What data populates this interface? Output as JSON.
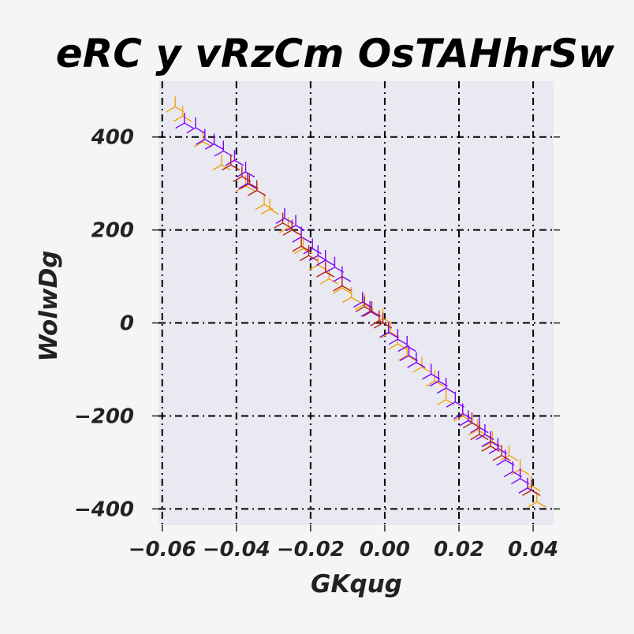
{
  "chart_data": {
    "type": "scatter",
    "title": "eRC y  vRzCm OsTAHhrSw",
    "xlabel": "GKqug",
    "ylabel": "WolwDg",
    "xlim": [
      -0.061,
      0.0455
    ],
    "ylim": [
      -435,
      520
    ],
    "xticks": [
      -0.06,
      -0.04,
      -0.02,
      0.0,
      0.02,
      0.04
    ],
    "xtick_labels": [
      "−0.06",
      "−0.04",
      "−0.02",
      "0.00",
      "0.02",
      "0.04"
    ],
    "yticks": [
      -400,
      -200,
      0,
      200,
      400
    ],
    "ytick_labels": [
      "−400",
      "−200",
      "0",
      "200",
      "400"
    ],
    "grid": true,
    "marker": "tri_up",
    "colors": {
      "plot_bg": "#e9e9f1",
      "page_bg": "#f4f6f5"
    },
    "series": [
      {
        "color": "#f0a30a",
        "x": [
          -0.0565,
          -0.0545,
          -0.049,
          -0.044,
          -0.0375,
          -0.0325,
          -0.031,
          -0.026,
          -0.022,
          -0.018,
          -0.015,
          -0.0115,
          -0.009,
          -0.0055,
          -0.0005,
          0.0015,
          0.0035,
          0.006,
          0.01,
          0.0135,
          0.0165,
          0.021,
          0.025,
          0.029,
          0.0335,
          0.0365,
          0.0395,
          0.041
        ],
        "y": [
          465,
          445,
          390,
          340,
          295,
          255,
          245,
          205,
          160,
          125,
          95,
          75,
          55,
          40,
          10,
          -20,
          -45,
          -70,
          -95,
          -125,
          -165,
          -200,
          -230,
          -255,
          -285,
          -315,
          -350,
          -385
        ]
      },
      {
        "color": "#7f00ff",
        "x": [
          -0.054,
          -0.051,
          -0.0485,
          -0.046,
          -0.0435,
          -0.0405,
          -0.0375,
          -0.037,
          -0.027,
          -0.024,
          -0.0225,
          -0.0195,
          -0.018,
          -0.016,
          -0.0135,
          -0.0115,
          -0.006,
          -0.004,
          0.001,
          0.0035,
          0.006,
          0.0065,
          0.0085,
          0.0125,
          0.0145,
          0.0165,
          0.019,
          0.021,
          0.0225,
          0.0255,
          0.027,
          0.0285,
          0.0305,
          0.0325,
          0.0345,
          0.0365,
          0.0385
        ],
        "y": [
          430,
          420,
          395,
          385,
          370,
          350,
          325,
          300,
          225,
          210,
          185,
          160,
          145,
          135,
          120,
          100,
          45,
          25,
          -20,
          -35,
          -50,
          -70,
          -85,
          -110,
          -125,
          -140,
          -170,
          -195,
          -210,
          -225,
          -240,
          -255,
          -270,
          -295,
          -320,
          -335,
          -355
        ]
      },
      {
        "color": "#b22212",
        "x": [
          -0.0415,
          -0.0385,
          -0.0365,
          -0.0345,
          -0.0275,
          -0.025,
          -0.0225,
          -0.0205,
          -0.016,
          -0.0115,
          -0.0055,
          -0.0035,
          -0.0015,
          -0.0005,
          0.0235,
          0.0255,
          0.0285,
          0.0315,
          0.0395
        ],
        "y": [
          340,
          315,
          300,
          285,
          215,
          200,
          165,
          145,
          110,
          80,
          35,
          25,
          5,
          0,
          -215,
          -240,
          -265,
          -285,
          -360
        ]
      }
    ]
  }
}
